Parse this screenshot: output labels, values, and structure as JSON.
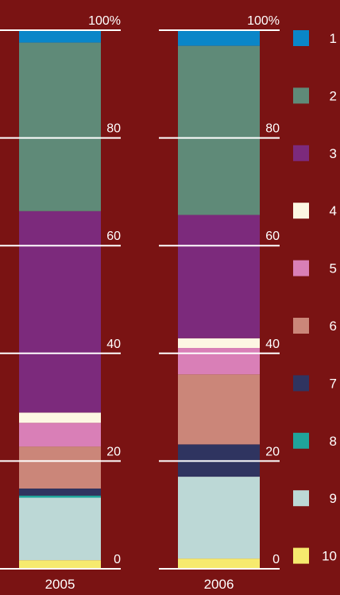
{
  "chart_data": {
    "type": "bar",
    "stacked": true,
    "normalized": true,
    "categories": [
      "2005",
      "2006"
    ],
    "series": [
      {
        "name": "1",
        "color": "#0a86c8",
        "values": [
          2.3,
          2.9
        ]
      },
      {
        "name": "2",
        "color": "#5f8a78",
        "values": [
          31.3,
          31.4
        ]
      },
      {
        "name": "3",
        "color": "#7c2a7c",
        "values": [
          37.4,
          22.9
        ]
      },
      {
        "name": "4",
        "color": "#fdf7e3",
        "values": [
          1.9,
          1.8
        ]
      },
      {
        "name": "5",
        "color": "#d97fb7",
        "values": [
          4.4,
          4.9
        ]
      },
      {
        "name": "6",
        "color": "#cb8679",
        "values": [
          7.8,
          13.0
        ]
      },
      {
        "name": "7",
        "color": "#2f3460",
        "values": [
          1.3,
          6.0
        ]
      },
      {
        "name": "8",
        "color": "#1fa49b",
        "values": [
          0.4,
          0.0
        ]
      },
      {
        "name": "9",
        "color": "#bcd8d6",
        "values": [
          11.6,
          15.2
        ]
      },
      {
        "name": "10",
        "color": "#f6ea6e",
        "values": [
          1.6,
          1.9
        ]
      }
    ],
    "ylim": [
      0,
      100
    ],
    "y_ticks": [
      {
        "value": 0,
        "label": "0"
      },
      {
        "value": 20,
        "label": "20"
      },
      {
        "value": 40,
        "label": "40"
      },
      {
        "value": 60,
        "label": "60"
      },
      {
        "value": 80,
        "label": "80"
      },
      {
        "value": 100,
        "label": "100%"
      }
    ],
    "legend_position": "right"
  }
}
